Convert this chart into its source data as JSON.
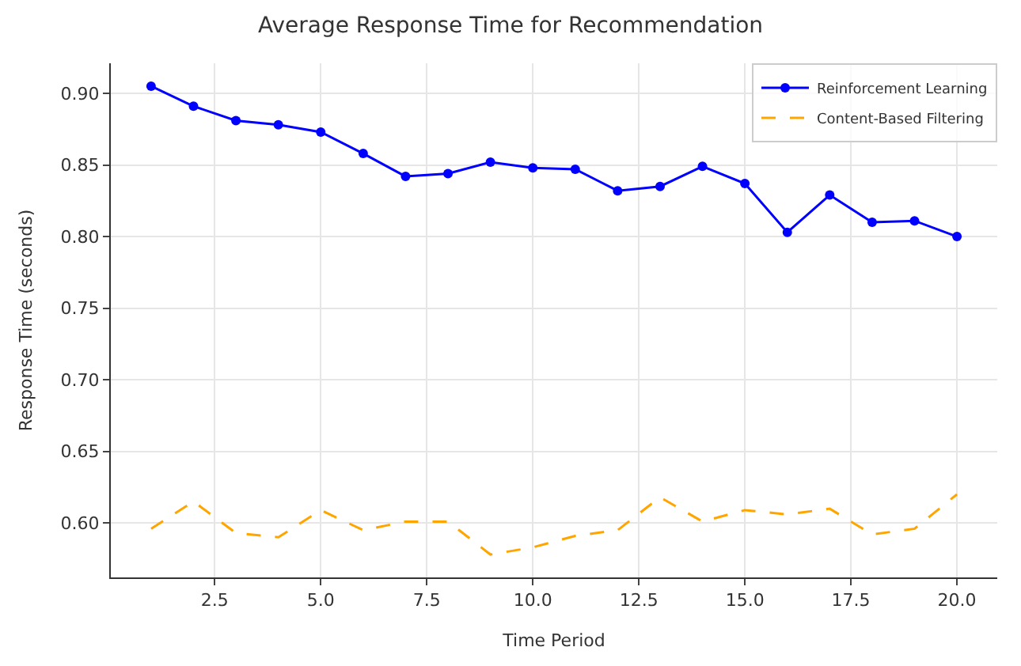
{
  "chart_data": {
    "type": "line",
    "title": "Average Response Time for Recommendation",
    "xlabel": "Time Period",
    "ylabel": "Response Time (seconds)",
    "x": [
      1,
      2,
      3,
      4,
      5,
      6,
      7,
      8,
      9,
      10,
      11,
      12,
      13,
      14,
      15,
      16,
      17,
      18,
      19,
      20
    ],
    "series": [
      {
        "name": "Reinforcement Learning",
        "color": "#0000ff",
        "marker": "circle",
        "line_style": "solid",
        "values": [
          0.905,
          0.891,
          0.881,
          0.878,
          0.873,
          0.858,
          0.842,
          0.844,
          0.852,
          0.848,
          0.847,
          0.832,
          0.835,
          0.849,
          0.837,
          0.803,
          0.829,
          0.81,
          0.811,
          0.8
        ]
      },
      {
        "name": "Content-Based Filtering",
        "color": "#ffa500",
        "marker": "none",
        "line_style": "dashed",
        "values": [
          0.596,
          0.615,
          0.593,
          0.59,
          0.609,
          0.595,
          0.601,
          0.601,
          0.578,
          0.583,
          0.591,
          0.595,
          0.618,
          0.601,
          0.609,
          0.606,
          0.61,
          0.592,
          0.596,
          0.62
        ]
      }
    ],
    "xlim": [
      0.05,
      20.95
    ],
    "xticks": [
      2.5,
      {
        "value": 5,
        "label": "5.0"
      },
      7.5,
      {
        "value": 10,
        "label": "10.0"
      },
      12.5,
      {
        "value": 15,
        "label": "15.0"
      },
      17.5,
      {
        "value": 20,
        "label": "20.0"
      }
    ],
    "ylim": [
      0.562,
      0.921
    ],
    "yticks": [
      {
        "value": 0.6,
        "label": "0.60"
      },
      0.65,
      {
        "value": 0.7,
        "label": "0.70"
      },
      0.75,
      {
        "value": 0.8,
        "label": "0.80"
      },
      0.85,
      {
        "value": 0.9,
        "label": "0.90"
      }
    ],
    "grid": true,
    "legend": "top right"
  }
}
